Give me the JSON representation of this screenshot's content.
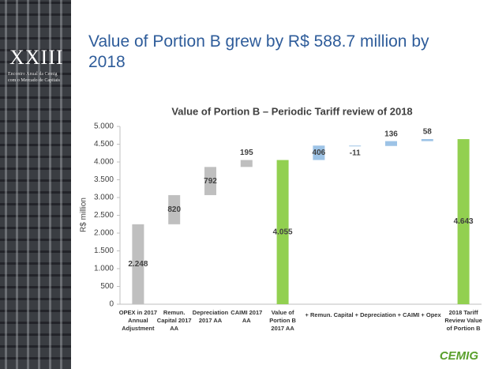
{
  "sidebar": {
    "edition": "XXIII",
    "event": [
      "Encontro Anual da Cemig",
      "com o Mercado de Capitais"
    ]
  },
  "headline": "Value of Portion B grew by R$ 588.7 million by 2018",
  "logo": "CEMIG",
  "chart_data": {
    "type": "waterfall",
    "title": "Value of Portion B – Periodic Tariff review of 2018",
    "y_label": "R$ million",
    "categories": [
      "OPEX in 2017 Annual Adjustment",
      "Remun. Capital 2017 AA",
      "Depreciation 2017 AA",
      "CAIMI 2017 AA",
      "Value of Portion B 2017 AA",
      null,
      null,
      null,
      null,
      "2018 Tariff Review Value of Portion B"
    ],
    "span_label": "+ Remun. Capital + Depreciation + CAIMI + Opex",
    "values": [
      2248,
      820,
      792,
      195,
      4055,
      406,
      -11,
      136,
      58,
      4643
    ],
    "value_labels": [
      "2.248",
      "820",
      "792",
      "195",
      "4.055",
      "406",
      "-11",
      "136",
      "58",
      "4.643"
    ],
    "is_total": [
      false,
      false,
      false,
      false,
      true,
      false,
      false,
      false,
      false,
      true
    ],
    "colors": [
      "#bfbfbf",
      "#bfbfbf",
      "#bfbfbf",
      "#bfbfbf",
      "#92d050",
      "#9dc3e6",
      "#9dc3e6",
      "#9dc3e6",
      "#9dc3e6",
      "#92d050"
    ],
    "ylim": [
      0,
      5000
    ],
    "yticks": [
      0,
      500,
      {
        "value": 1000,
        "label": "1.000"
      },
      {
        "value": 1500,
        "label": "1.500"
      },
      {
        "value": 2000,
        "label": "2.000"
      },
      {
        "value": 2500,
        "label": "2.500"
      },
      {
        "value": 3000,
        "label": "3.000"
      },
      {
        "value": 3500,
        "label": "3.500"
      },
      {
        "value": 4000,
        "label": "4.000"
      },
      {
        "value": 4500,
        "label": "4.500"
      },
      {
        "value": 5000,
        "label": "5.000"
      }
    ],
    "grid": false
  }
}
